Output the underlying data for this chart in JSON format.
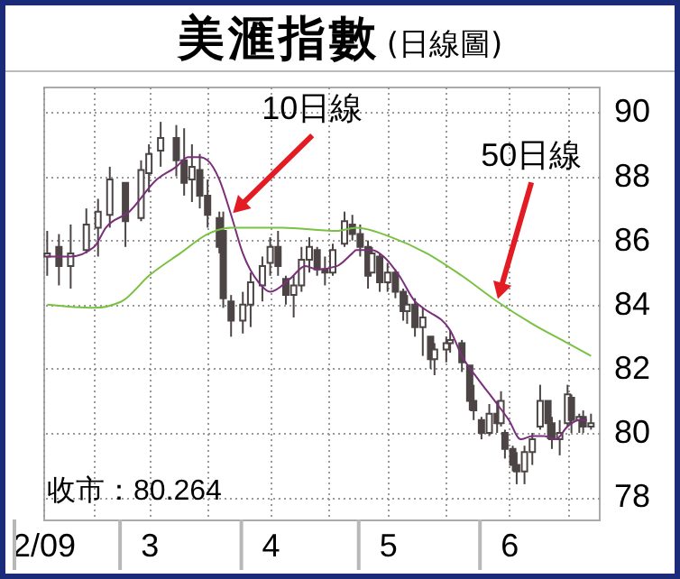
{
  "chart_data": {
    "type": "candlestick",
    "title": "美滙指數",
    "subtitle": "(日線圖)",
    "xlim": [
      "--02-02",
      "--06-24"
    ],
    "xticks": [
      {
        "value": "--02-02",
        "label": "2/09"
      },
      {
        "value": "--02-15",
        "label": null
      },
      {
        "value": "--03-01",
        "label": "3"
      },
      {
        "value": "--03-16",
        "label": null
      },
      {
        "value": "--04-01",
        "label": "4"
      },
      {
        "value": "--04-16",
        "label": null
      },
      {
        "value": "--05-01",
        "label": "5"
      },
      {
        "value": "--05-16",
        "label": null
      },
      {
        "value": "--06-01",
        "label": "6"
      },
      {
        "value": "--06-16",
        "label": null
      }
    ],
    "ylim": [
      77.3,
      90.8
    ],
    "yticks": [
      78,
      80,
      82,
      84,
      86,
      88,
      90
    ],
    "grid": true,
    "series": [
      {
        "color": "#4d4545",
        "x": [
          "--02-03",
          "--02-06",
          "--02-09",
          "--02-13",
          "--02-16",
          "--02-19",
          "--02-23",
          "--02-27",
          "--03-01",
          "--03-04",
          "--03-08",
          "--03-10",
          "--03-12",
          "--03-14",
          "--03-16",
          "--03-19",
          "--03-20",
          "--03-22",
          "--03-25",
          "--03-27",
          "--03-30",
          "--04-01",
          "--04-03",
          "--04-05",
          "--04-07",
          "--04-09",
          "--04-11",
          "--04-13",
          "--04-15",
          "--04-17",
          "--04-20",
          "--04-22",
          "--04-24",
          "--04-26",
          "--04-27",
          "--04-29",
          "--05-01",
          "--05-03",
          "--05-05",
          "--05-06",
          "--05-08",
          "--05-10",
          "--05-12",
          "--05-13",
          "--05-16",
          "--05-17",
          "--05-20",
          "--05-22",
          "--05-23",
          "--05-25",
          "--05-27",
          "--05-29",
          "--05-30",
          "--05-31",
          "--06-02",
          "--06-03",
          "--06-05",
          "--06-07",
          "--06-09",
          "--06-11",
          "--06-12",
          "--06-14",
          "--06-16",
          "--06-17",
          "--06-19",
          "--06-20",
          "--06-22"
        ],
        "ohlc": [
          [
            85.5,
            86.3,
            84.9,
            85.6
          ],
          [
            85.8,
            86.2,
            84.6,
            85.2
          ],
          [
            85.2,
            86.5,
            84.5,
            85.6
          ],
          [
            85.7,
            87.0,
            85.6,
            86.5
          ],
          [
            86.4,
            87.3,
            85.5,
            86.9
          ],
          [
            86.8,
            88.3,
            86.4,
            87.9
          ],
          [
            87.8,
            87.8,
            85.8,
            86.6
          ],
          [
            86.7,
            88.5,
            86.6,
            88.2
          ],
          [
            88.1,
            89.0,
            87.5,
            88.7
          ],
          [
            88.8,
            89.7,
            88.3,
            89.2
          ],
          [
            89.2,
            89.6,
            88.0,
            88.5
          ],
          [
            88.5,
            89.5,
            87.4,
            87.8
          ],
          [
            87.9,
            89.0,
            87.2,
            88.3
          ],
          [
            88.2,
            88.7,
            87.0,
            87.4
          ],
          [
            87.4,
            87.9,
            86.4,
            86.8
          ],
          [
            86.7,
            86.9,
            85.6,
            85.8
          ],
          [
            86.3,
            86.9,
            83.9,
            84.2
          ],
          [
            84.1,
            84.3,
            83.0,
            83.5
          ],
          [
            83.5,
            84.4,
            83.1,
            84.0
          ],
          [
            84.0,
            85.0,
            83.3,
            84.7
          ],
          [
            84.6,
            85.5,
            84.1,
            85.2
          ],
          [
            85.3,
            86.1,
            84.9,
            85.8
          ],
          [
            85.8,
            86.3,
            84.9,
            85.2
          ],
          [
            84.8,
            84.9,
            84.0,
            84.3
          ],
          [
            84.3,
            84.9,
            83.6,
            84.6
          ],
          [
            84.6,
            85.8,
            84.4,
            85.4
          ],
          [
            85.4,
            86.1,
            85.0,
            85.8
          ],
          [
            85.7,
            85.8,
            84.9,
            85.1
          ],
          [
            85.1,
            85.5,
            84.6,
            85.0
          ],
          [
            85.0,
            85.9,
            84.9,
            85.7
          ],
          [
            85.9,
            86.9,
            85.8,
            86.6
          ],
          [
            86.5,
            86.8,
            86.0,
            86.2
          ],
          [
            86.2,
            86.5,
            85.5,
            85.8
          ],
          [
            85.8,
            86.0,
            84.5,
            84.9
          ],
          [
            85.0,
            85.8,
            85.0,
            85.6
          ],
          [
            85.5,
            85.6,
            84.4,
            84.7
          ],
          [
            84.7,
            85.3,
            84.4,
            85.0
          ],
          [
            85.0,
            85.1,
            84.2,
            84.4
          ],
          [
            84.4,
            84.5,
            83.5,
            83.8
          ],
          [
            83.8,
            84.3,
            83.4,
            84.0
          ],
          [
            84.0,
            84.2,
            83.0,
            83.3
          ],
          [
            83.3,
            83.9,
            82.4,
            83.6
          ],
          [
            83.0,
            83.0,
            82.0,
            82.3
          ],
          [
            82.3,
            82.8,
            81.8,
            82.6
          ],
          [
            82.6,
            83.0,
            82.2,
            82.8
          ],
          [
            82.8,
            83.2,
            82.5,
            82.9
          ],
          [
            82.8,
            82.9,
            81.9,
            82.2
          ],
          [
            82.1,
            82.1,
            80.7,
            81.0
          ],
          [
            81.0,
            81.5,
            80.4,
            80.7
          ],
          [
            80.4,
            80.5,
            79.8,
            80.0
          ],
          [
            80.0,
            80.9,
            79.9,
            80.6
          ],
          [
            80.6,
            81.0,
            80.0,
            80.3
          ],
          [
            80.3,
            81.3,
            80.2,
            81.0
          ],
          [
            80.0,
            80.1,
            79.2,
            79.5
          ],
          [
            79.5,
            79.6,
            78.8,
            79.0
          ],
          [
            79.0,
            79.4,
            78.4,
            78.8
          ],
          [
            78.8,
            79.6,
            78.4,
            79.4
          ],
          [
            79.4,
            80.0,
            79.0,
            79.8
          ],
          [
            80.2,
            81.5,
            80.1,
            81.0
          ],
          [
            81.0,
            81.0,
            79.8,
            80.3
          ],
          [
            80.3,
            80.5,
            79.5,
            79.8
          ],
          [
            79.8,
            80.4,
            79.3,
            80.0
          ],
          [
            80.3,
            81.5,
            80.2,
            81.2
          ],
          [
            81.1,
            81.2,
            80.0,
            80.4
          ],
          [
            80.4,
            80.6,
            80.0,
            80.5
          ],
          [
            80.5,
            80.7,
            80.0,
            80.2
          ],
          [
            80.2,
            80.6,
            80.1,
            80.3
          ]
        ]
      },
      {
        "type": "line",
        "color": "#7b2f7b",
        "x": [
          "--02-03",
          "--02-09",
          "--02-15",
          "--02-18",
          "--02-24",
          "--03-03",
          "--03-08",
          "--03-11",
          "--03-14",
          "--03-16",
          "--03-19",
          "--03-22",
          "--03-25",
          "--03-29",
          "--04-01",
          "--04-06",
          "--04-10",
          "--04-13",
          "--04-18",
          "--04-22",
          "--04-23",
          "--04-27",
          "--04-30",
          "--05-04",
          "--05-08",
          "--05-10",
          "--05-17",
          "--05-20",
          "--05-24",
          "--05-29",
          "--06-01",
          "--06-04",
          "--06-07",
          "--06-10",
          "--06-13",
          "--06-16",
          "--06-19",
          "--06-21"
        ],
        "values": [
          85.5,
          85.5,
          85.8,
          86.4,
          86.9,
          87.9,
          88.3,
          88.6,
          88.6,
          88.5,
          87.9,
          86.8,
          85.6,
          84.7,
          84.4,
          84.8,
          85.2,
          85.1,
          85.2,
          85.6,
          85.7,
          85.7,
          85.5,
          84.9,
          84.1,
          83.9,
          83.2,
          82.4,
          81.7,
          80.9,
          80.4,
          79.8,
          79.9,
          79.9,
          79.8,
          80.2,
          80.4,
          80.4
        ]
      },
      {
        "type": "line",
        "color": "#7ac143",
        "x": [
          "--02-03",
          "--02-15",
          "--02-22",
          "--03-01",
          "--03-09",
          "--03-16",
          "--03-22",
          "--04-04",
          "--04-18",
          "--04-23",
          "--05-02",
          "--05-11",
          "--05-20",
          "--05-29",
          "--06-07",
          "--06-16",
          "--06-22"
        ],
        "values": [
          84.0,
          83.9,
          84.1,
          84.9,
          85.6,
          86.2,
          86.4,
          86.4,
          86.3,
          86.4,
          86.1,
          85.6,
          84.9,
          84.1,
          83.4,
          82.8,
          82.4
        ]
      }
    ],
    "annotations": [
      {
        "text": "10日線",
        "x": "--03-22",
        "y": 86.8
      },
      {
        "text": "50日線",
        "x": "--05-29",
        "y": 84.1
      },
      "收市：80.264"
    ]
  }
}
